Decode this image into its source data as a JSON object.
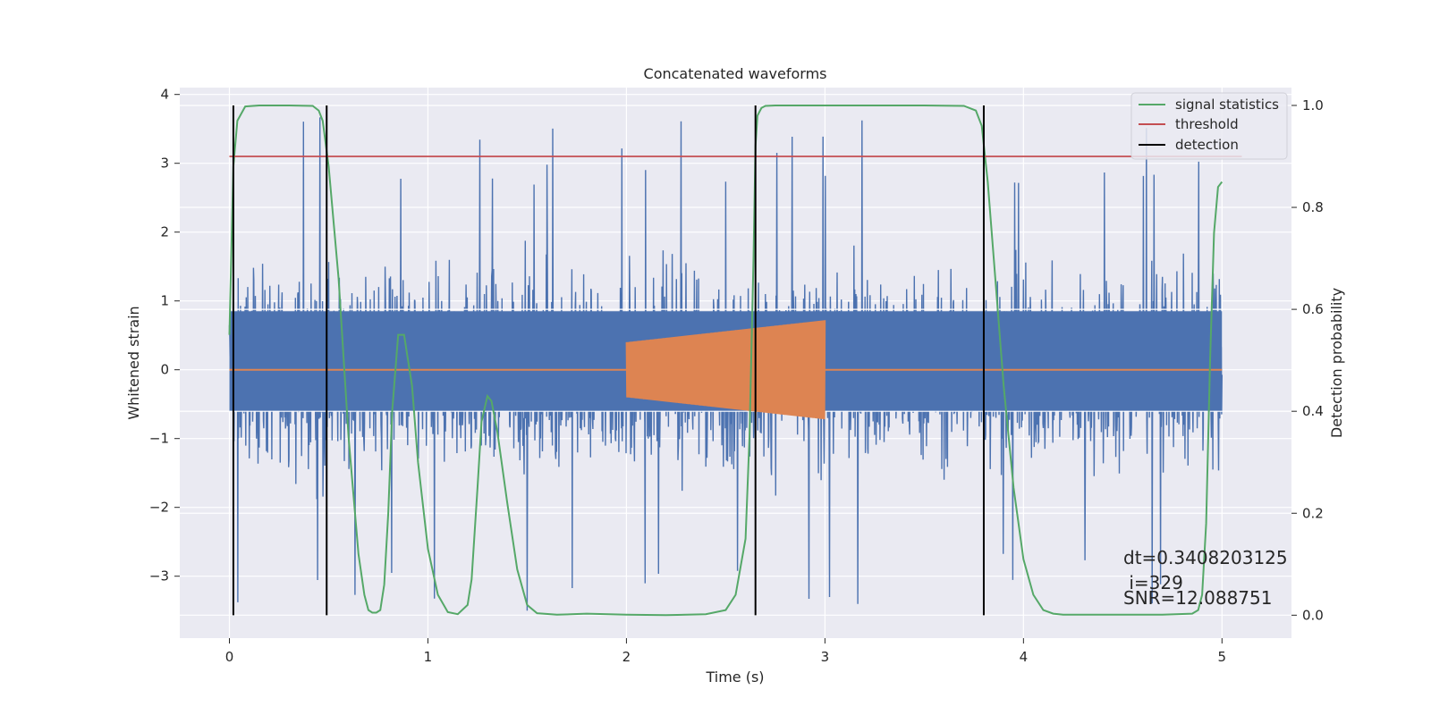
{
  "chart_data": {
    "type": "line",
    "title": "Concatenated waveforms",
    "xlabel": "Time (s)",
    "ylabel": "Whitened strain",
    "y2label": "Detection probability",
    "xlim": [
      -0.25,
      5.35
    ],
    "ylim": [
      -3.9,
      4.1
    ],
    "y2lim": [
      -0.045,
      1.035
    ],
    "x_ticks": [
      0,
      1,
      2,
      3,
      4,
      5
    ],
    "y_ticks": [
      -3,
      -2,
      -1,
      0,
      1,
      2,
      3,
      4
    ],
    "y2_ticks": [
      0.0,
      0.2,
      0.4,
      0.6,
      0.8,
      1.0
    ],
    "grid": true,
    "legend_position": "top-right",
    "colors": {
      "strain": "#4c72b0",
      "template": "#dd8452",
      "signal_statistics": "#55a868",
      "threshold": "#c44e52",
      "detection": "#000000",
      "background": "#eaeaf2",
      "grid": "#ffffff"
    },
    "series": [
      {
        "name": "signal statistics",
        "axis": "right",
        "x": [
          0.0,
          0.02,
          0.04,
          0.08,
          0.15,
          0.3,
          0.42,
          0.45,
          0.47,
          0.5,
          0.55,
          0.6,
          0.65,
          0.68,
          0.7,
          0.72,
          0.74,
          0.76,
          0.78,
          0.8,
          0.82,
          0.85,
          0.88,
          0.92,
          0.95,
          1.0,
          1.05,
          1.1,
          1.15,
          1.2,
          1.22,
          1.25,
          1.27,
          1.3,
          1.32,
          1.35,
          1.4,
          1.45,
          1.5,
          1.55,
          1.65,
          1.8,
          2.0,
          2.2,
          2.4,
          2.5,
          2.55,
          2.6,
          2.62,
          2.64,
          2.65,
          2.66,
          2.68,
          2.7,
          2.75,
          2.9,
          3.2,
          3.5,
          3.7,
          3.76,
          3.79,
          3.82,
          3.85,
          3.9,
          3.95,
          4.0,
          4.05,
          4.1,
          4.15,
          4.2,
          4.5,
          4.7,
          4.85,
          4.88,
          4.9,
          4.92,
          4.94,
          4.96,
          4.98,
          5.0
        ],
        "values": [
          0.55,
          0.88,
          0.97,
          0.998,
          1.0,
          1.0,
          0.999,
          0.99,
          0.97,
          0.88,
          0.66,
          0.35,
          0.12,
          0.04,
          0.01,
          0.005,
          0.005,
          0.01,
          0.06,
          0.2,
          0.4,
          0.55,
          0.55,
          0.45,
          0.3,
          0.13,
          0.04,
          0.006,
          0.002,
          0.02,
          0.07,
          0.25,
          0.38,
          0.43,
          0.42,
          0.36,
          0.22,
          0.09,
          0.02,
          0.004,
          0.001,
          0.003,
          0.001,
          0.0,
          0.002,
          0.01,
          0.04,
          0.15,
          0.35,
          0.7,
          0.92,
          0.98,
          0.995,
          0.999,
          1.0,
          1.0,
          1.0,
          1.0,
          0.999,
          0.99,
          0.96,
          0.85,
          0.7,
          0.45,
          0.25,
          0.11,
          0.04,
          0.01,
          0.003,
          0.001,
          0.001,
          0.001,
          0.003,
          0.01,
          0.04,
          0.18,
          0.5,
          0.75,
          0.84,
          0.85
        ]
      },
      {
        "name": "threshold",
        "axis": "right",
        "x": [
          0.0,
          5.1
        ],
        "values": [
          0.9,
          0.9
        ]
      },
      {
        "name": "detection",
        "axis": "right",
        "x": [
          0.02,
          0.49,
          2.65,
          3.8
        ],
        "values": [
          1.0,
          1.0,
          1.0,
          1.0
        ]
      }
    ],
    "strain_noise": {
      "x_range": [
        0.0,
        5.0
      ],
      "core_band": [
        -0.6,
        0.85
      ],
      "spike_range": [
        -3.5,
        3.75
      ]
    },
    "template": {
      "x_range": [
        2.0,
        3.0
      ],
      "amplitude_start": 0.4,
      "amplitude_end": 0.72
    },
    "annotations": [
      "dt=0.3408203125",
      " i=329",
      "SNR=12.088751"
    ]
  }
}
